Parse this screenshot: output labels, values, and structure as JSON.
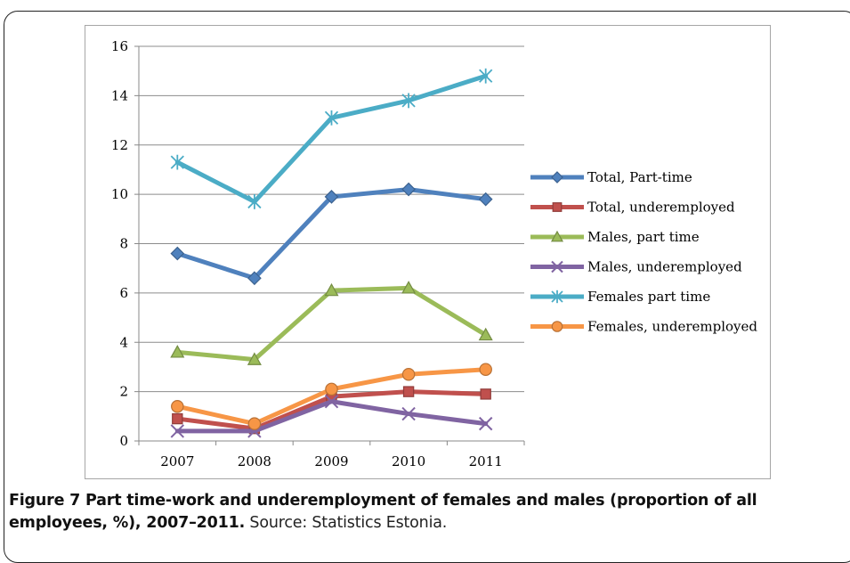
{
  "chart_data": {
    "type": "line",
    "categories": [
      "2007",
      "2008",
      "2009",
      "2010",
      "2011"
    ],
    "ylim": [
      0,
      16
    ],
    "yticks": [
      0,
      2,
      4,
      6,
      8,
      10,
      12,
      14,
      16
    ],
    "grid": true,
    "legend_position": "right",
    "series": [
      {
        "name": "Total,  Part-time",
        "values": [
          7.6,
          6.6,
          9.9,
          10.2,
          9.8
        ],
        "color": "#4f81bd",
        "marker": "diamond"
      },
      {
        "name": "Total, underemployed",
        "values": [
          0.9,
          0.5,
          1.8,
          2.0,
          1.9
        ],
        "color": "#c0504d",
        "marker": "square"
      },
      {
        "name": "Males, part time",
        "values": [
          3.6,
          3.3,
          6.1,
          6.2,
          4.3
        ],
        "color": "#9bbb59",
        "marker": "triangle"
      },
      {
        "name": "Males, underemployed",
        "values": [
          0.4,
          0.4,
          1.6,
          1.1,
          0.7
        ],
        "color": "#8064a2",
        "marker": "x"
      },
      {
        "name": "Females part time",
        "values": [
          11.3,
          9.7,
          13.1,
          13.8,
          14.8
        ],
        "color": "#4bacc6",
        "marker": "star"
      },
      {
        "name": "Females, underemployed",
        "values": [
          1.4,
          0.7,
          2.1,
          2.7,
          2.9
        ],
        "color": "#f79646",
        "marker": "circle"
      }
    ]
  },
  "caption": {
    "bold": "Figure 7 Part time-work and underemployment of females and males (proportion of all employees, %), 2007–2011.",
    "source": " Source: Statistics Estonia."
  }
}
